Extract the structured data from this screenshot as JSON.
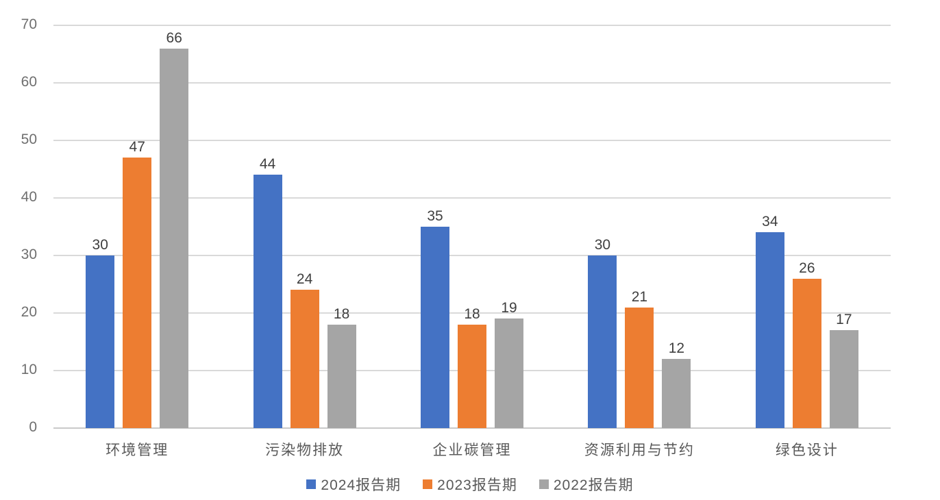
{
  "chart_data": {
    "type": "bar",
    "title": "",
    "xlabel": "",
    "ylabel": "",
    "categories": [
      "环境管理",
      "污染物排放",
      "企业碳管理",
      "资源利用与节约",
      "绿色设计"
    ],
    "series": [
      {
        "name": "2024报告期",
        "color": "#4472C4",
        "values": [
          30,
          44,
          35,
          30,
          34
        ]
      },
      {
        "name": "2023报告期",
        "color": "#ED7D31",
        "values": [
          47,
          24,
          18,
          21,
          26
        ]
      },
      {
        "name": "2022报告期",
        "color": "#A5A5A5",
        "values": [
          66,
          18,
          19,
          12,
          17
        ]
      }
    ],
    "ylim": [
      0,
      70
    ],
    "yticks": [
      0,
      10,
      20,
      30,
      40,
      50,
      60,
      70
    ],
    "grid": true,
    "value_labels": true,
    "legend_position": "bottom"
  },
  "colors": {
    "gridline": "#d9d9d9",
    "baseline": "#c9c9c9",
    "tick_label": "#6f6f6f",
    "value_label": "#3f3f3f",
    "category_label": "#595959",
    "legend_label": "#595959",
    "background": "#ffffff"
  }
}
